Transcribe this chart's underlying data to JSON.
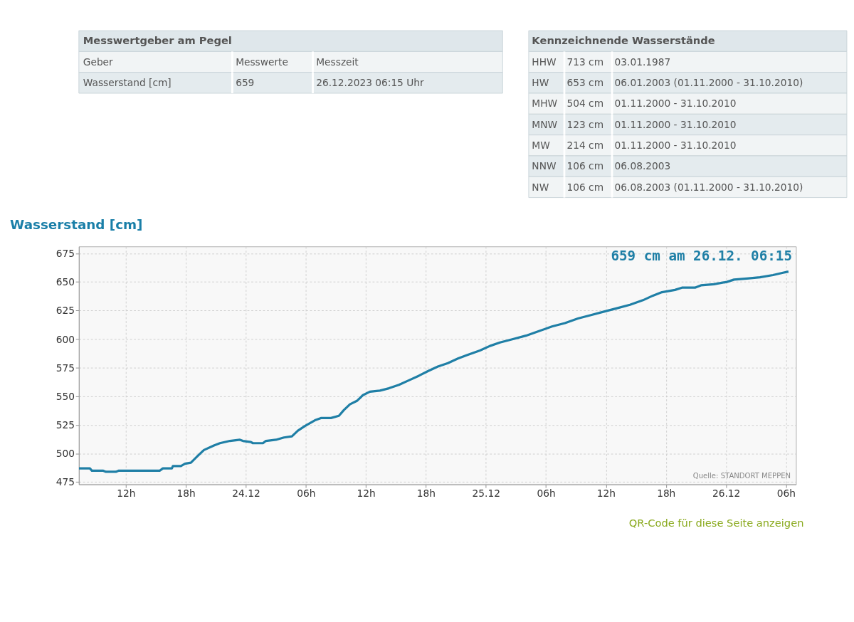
{
  "chart_data": [
    {
      "type": "other",
      "title": "Messwertgeber am Pegel",
      "annotations": [
        "Geber",
        "Messwerte",
        "Messzeit",
        "Wasserstand [cm]",
        "659",
        "26.12.2023 06:15 Uhr"
      ]
    },
    {
      "type": "other",
      "title": "Kennzeichnende Wasserstände",
      "annotations": [
        "HHW",
        "713 cm",
        "03.01.1987",
        "HW",
        "653 cm",
        "06.01.2003 (01.11.2000 - 31.10.2010)",
        "MHW",
        "504 cm",
        "01.11.2000 - 31.10.2010",
        "MNW",
        "123 cm",
        "01.11.2000 - 31.10.2010",
        "MW",
        "214 cm",
        "01.11.2000 - 31.10.2010",
        "NNW",
        "106 cm",
        "06.08.2003",
        "NW",
        "106 cm",
        "06.08.2003 (01.11.2000 - 31.10.2010)"
      ]
    },
    {
      "type": "line",
      "title": "Wasserstand [cm]",
      "annotations": [
        "659 cm am 26.12. 06:15",
        "Quelle: STANDORT MEPPEN",
        "QR-Code für diese Seite anzeigen"
      ],
      "x": [
        "2023-12-23T07:18",
        "2023-12-23T08:24",
        "2023-12-23T08:36",
        "2023-12-23T09:42",
        "2023-12-23T10:00",
        "2023-12-23T11:00",
        "2023-12-23T11:18",
        "2023-12-23T15:24",
        "2023-12-23T15:42",
        "2023-12-23T16:36",
        "2023-12-23T16:42",
        "2023-12-23T17:30",
        "2023-12-23T17:54",
        "2023-12-23T18:30",
        "2023-12-23T19:12",
        "2023-12-23T19:48",
        "2023-12-23T20:48",
        "2023-12-23T21:24",
        "2023-12-23T22:24",
        "2023-12-23T23:24",
        "2023-12-23T23:42",
        "2023-12-24T00:30",
        "2023-12-24T00:42",
        "2023-12-24T01:42",
        "2023-12-24T02:00",
        "2023-12-24T03:00",
        "2023-12-24T03:48",
        "2023-12-24T04:36",
        "2023-12-24T05:12",
        "2023-12-24T05:54",
        "2023-12-24T06:54",
        "2023-12-24T07:30",
        "2023-12-24T08:30",
        "2023-12-24T09:18",
        "2023-12-24T09:48",
        "2023-12-24T10:24",
        "2023-12-24T11:06",
        "2023-12-24T11:42",
        "2023-12-24T12:24",
        "2023-12-24T13:24",
        "2023-12-24T14:18",
        "2023-12-24T15:18",
        "2023-12-24T16:18",
        "2023-12-24T17:18",
        "2023-12-24T18:12",
        "2023-12-24T19:12",
        "2023-12-24T20:12",
        "2023-12-24T21:12",
        "2023-12-24T22:06",
        "2023-12-24T23:24",
        "2023-12-25T00:24",
        "2023-12-25T01:24",
        "2023-12-25T02:42",
        "2023-12-25T04:00",
        "2023-12-25T05:18",
        "2023-12-25T06:36",
        "2023-12-25T07:54",
        "2023-12-25T09:12",
        "2023-12-25T10:30",
        "2023-12-25T11:48",
        "2023-12-25T13:06",
        "2023-12-25T14:24",
        "2023-12-25T15:42",
        "2023-12-25T16:42",
        "2023-12-25T17:36",
        "2023-12-25T18:54",
        "2023-12-25T19:36",
        "2023-12-25T20:54",
        "2023-12-25T21:30",
        "2023-12-25T22:48",
        "2023-12-26T00:06",
        "2023-12-26T00:48",
        "2023-12-26T02:06",
        "2023-12-26T03:24",
        "2023-12-26T04:42",
        "2023-12-26T05:42",
        "2023-12-26T06:15"
      ],
      "series": [
        {
          "color": "#1f7fa6",
          "values": [
            487,
            487,
            485,
            485,
            484,
            484,
            485,
            485,
            487,
            487,
            489,
            489,
            491,
            492,
            498,
            503,
            507,
            509,
            511,
            512,
            511,
            510,
            509,
            509,
            511,
            512,
            514,
            515,
            520,
            524,
            529,
            531,
            531,
            533,
            538,
            543,
            546,
            551,
            554,
            555,
            557,
            560,
            564,
            568,
            572,
            576,
            579,
            583,
            586,
            590,
            594,
            597,
            600,
            603,
            607,
            611,
            614,
            618,
            621,
            624,
            627,
            630,
            634,
            638,
            641,
            643,
            645,
            645,
            647,
            648,
            650,
            652,
            653,
            654,
            656,
            658,
            659
          ]
        }
      ],
      "xlim": [
        "2023-12-23T07:18",
        "2023-12-26T07:00"
      ],
      "ylim": [
        473,
        681
      ],
      "xticks": [
        {
          "value": "2023-12-23T12:00",
          "label": "12h"
        },
        {
          "value": "2023-12-23T18:00",
          "label": "18h"
        },
        {
          "value": "2023-12-24T00:00",
          "label": "24.12"
        },
        {
          "value": "2023-12-24T06:00",
          "label": "06h"
        },
        {
          "value": "2023-12-24T12:00",
          "label": "12h"
        },
        {
          "value": "2023-12-24T18:00",
          "label": "18h"
        },
        {
          "value": "2023-12-25T00:00",
          "label": "25.12"
        },
        {
          "value": "2023-12-25T06:00",
          "label": "06h"
        },
        {
          "value": "2023-12-25T12:00",
          "label": "12h"
        },
        {
          "value": "2023-12-25T18:00",
          "label": "18h"
        },
        {
          "value": "2023-12-26T00:00",
          "label": "26.12"
        },
        {
          "value": "2023-12-26T06:00",
          "label": "06h"
        }
      ],
      "yticks": [
        475,
        500,
        525,
        550,
        575,
        600,
        625,
        650,
        675
      ],
      "grid": true,
      "line_style": "solid",
      "marker": "none"
    }
  ]
}
